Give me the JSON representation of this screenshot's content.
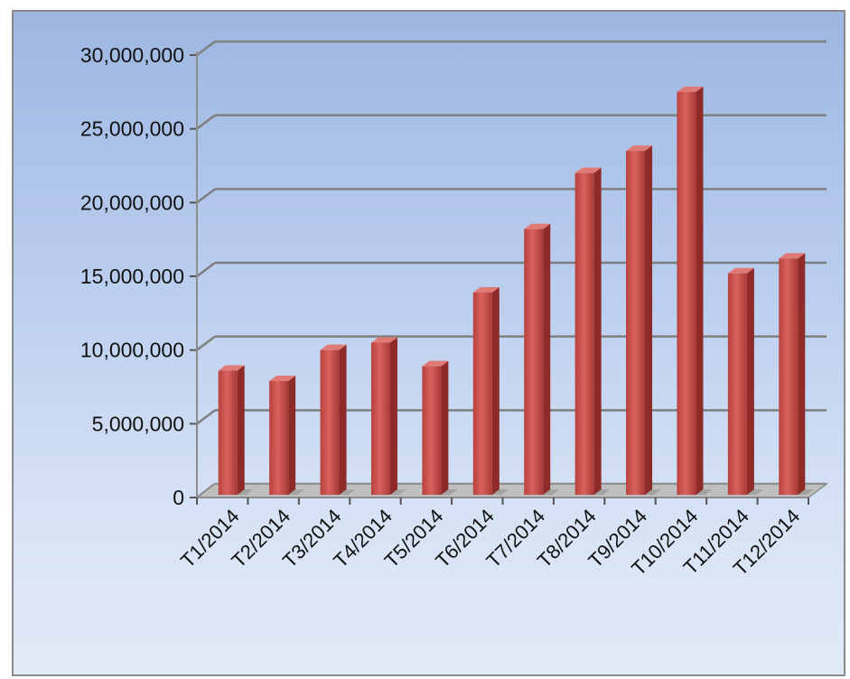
{
  "chart_data": {
    "type": "bar",
    "title": "",
    "xlabel": "",
    "ylabel": "",
    "categories": [
      "T1/2014",
      "T2/2014",
      "T3/2014",
      "T4/2014",
      "T5/2014",
      "T6/2014",
      "T7/2014",
      "T8/2014",
      "T9/2014",
      "T10/2014",
      "T11/2014",
      "T12/2014"
    ],
    "values": [
      8600000,
      7900000,
      10000000,
      10500000,
      8900000,
      13900000,
      18200000,
      22000000,
      23500000,
      27500000,
      15200000,
      16200000
    ],
    "yticks": [
      "0",
      "5,000,000",
      "10,000,000",
      "15,000,000",
      "20,000,000",
      "25,000,000",
      "30,000,000"
    ],
    "ylim": [
      0,
      30000000
    ],
    "grid": true,
    "legend": "none",
    "style": "3d-column",
    "bar_color": "#c0504d"
  }
}
